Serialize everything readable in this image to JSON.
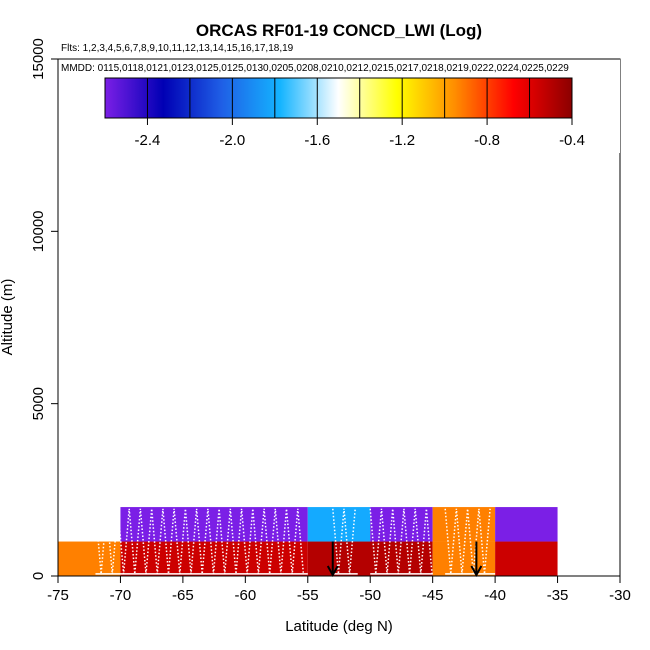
{
  "chart_data": {
    "type": "heatmap",
    "title": "ORCAS RF01-19 CONCD_LWI (Log)",
    "subtitle": "Flts: 1,2,3,4,5,6,7,8,9,10,11,12,13,14,15,16,17,18,19",
    "mmdd_label": "MMDD: 0115,0118,0121,0123,0125,0125,0130,0205,0208,0210,0212,0215,0217,0218,0219,0222,0224,0225,0229",
    "xlabel": "Latitude (deg N)",
    "ylabel": "Altitude (m)",
    "xlim": [
      -75,
      -30
    ],
    "ylim": [
      0,
      15000
    ],
    "x_ticks": [
      "-75",
      "-70",
      "-65",
      "-60",
      "-55",
      "-50",
      "-45",
      "-40",
      "-35",
      "-30"
    ],
    "y_ticks": [
      "0",
      "5000",
      "10000",
      "15000"
    ],
    "colorbar": {
      "range": [
        -2.6,
        -0.4
      ],
      "tick_values": [
        -2.4,
        -2.0,
        -1.6,
        -1.2,
        -0.8,
        -0.4
      ],
      "tick_labels": [
        "-2.4",
        "-2.0",
        "-1.6",
        "-1.2",
        "-0.8",
        "-0.4"
      ],
      "colors": [
        "#7B1FE6",
        "#0000B4",
        "#1F5FE6",
        "#14B4FF",
        "#FFFFFF",
        "#FFFF00",
        "#FF8C00",
        "#FF0000",
        "#8B0000"
      ]
    },
    "cells": [
      {
        "lat0": -75,
        "lat1": -70,
        "alt0": 0,
        "alt1": 1000,
        "value": -0.9,
        "color": "#FF8000"
      },
      {
        "lat0": -70,
        "lat1": -55,
        "alt0": 0,
        "alt1": 1000,
        "value": -0.5,
        "color": "#CC0000"
      },
      {
        "lat0": -55,
        "lat1": -45,
        "alt0": 0,
        "alt1": 1000,
        "value": -0.45,
        "color": "#B40000"
      },
      {
        "lat0": -45,
        "lat1": -40,
        "alt0": 0,
        "alt1": 1000,
        "value": -0.9,
        "color": "#FF8000"
      },
      {
        "lat0": -40,
        "lat1": -35,
        "alt0": 0,
        "alt1": 1000,
        "value": -0.5,
        "color": "#CC0000"
      },
      {
        "lat0": -70,
        "lat1": -55,
        "alt0": 1000,
        "alt1": 2000,
        "value": -2.5,
        "color": "#7B1FE6"
      },
      {
        "lat0": -55,
        "lat1": -50,
        "alt0": 1000,
        "alt1": 2000,
        "value": -1.7,
        "color": "#14AAFF"
      },
      {
        "lat0": -50,
        "lat1": -45,
        "alt0": 1000,
        "alt1": 2000,
        "value": -2.5,
        "color": "#7B1FE6"
      },
      {
        "lat0": -45,
        "lat1": -40,
        "alt0": 1000,
        "alt1": 2000,
        "value": -0.9,
        "color": "#FF8000"
      },
      {
        "lat0": -40,
        "lat1": -35,
        "alt0": 1000,
        "alt1": 2000,
        "value": -2.5,
        "color": "#7B1FE6"
      }
    ],
    "arrows_lat": [
      -53,
      -41.5
    ],
    "flight_track_segments": [
      {
        "lat0": -72,
        "lat1": -55,
        "alt_top": 2000
      },
      {
        "lat0": -53,
        "lat1": -51,
        "alt_top": 2000
      },
      {
        "lat0": -50,
        "lat1": -45,
        "alt_top": 2000
      },
      {
        "lat0": -44,
        "lat1": -40,
        "alt_top": 2000
      }
    ]
  }
}
